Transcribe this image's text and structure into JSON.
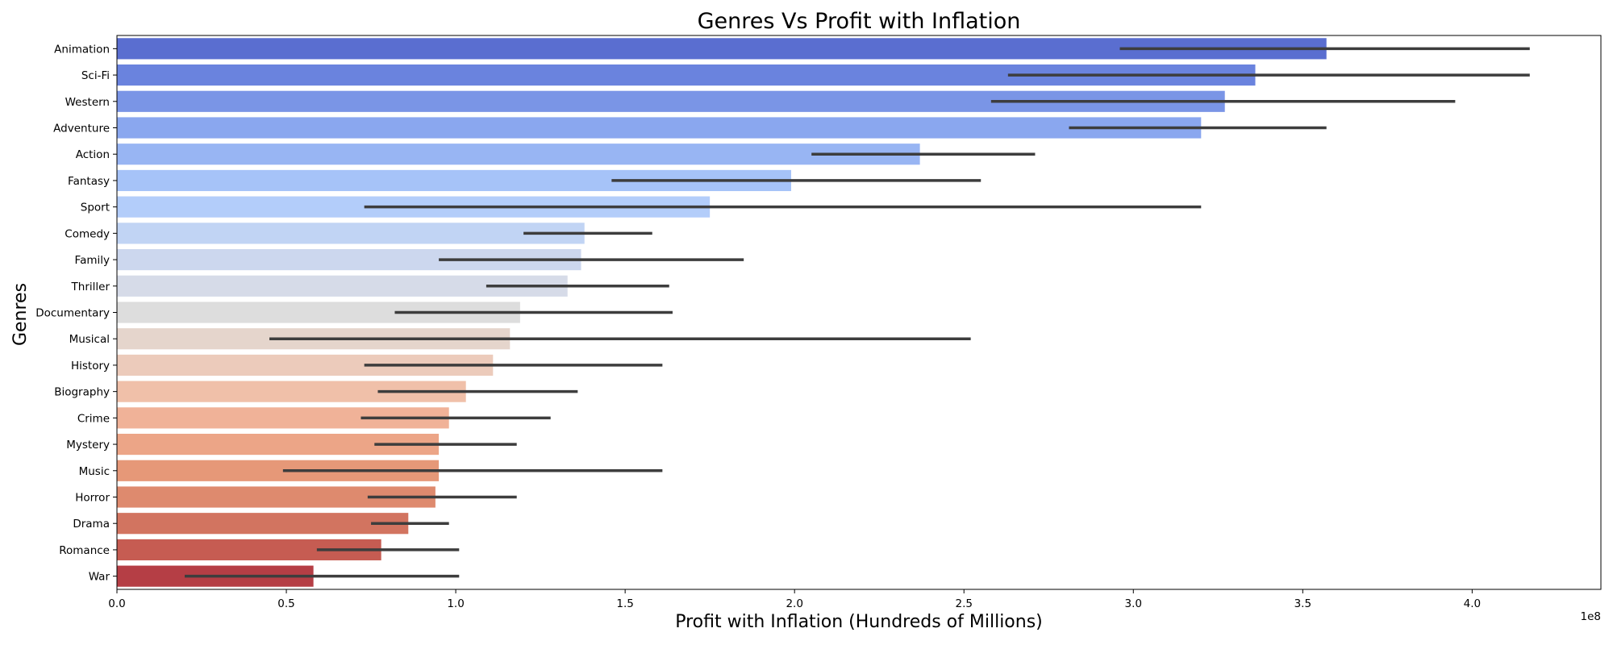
{
  "chart_data": {
    "type": "bar",
    "orientation": "horizontal",
    "title": "Genres Vs Profit with Inflation",
    "xlabel": "Profit with Inflation (Hundreds of Millions)",
    "ylabel": "Genres",
    "x_scale_label": "1e8",
    "xlim": [
      0,
      4.38
    ],
    "xticks": [
      0.0,
      0.5,
      1.0,
      1.5,
      2.0,
      2.5,
      3.0,
      3.5,
      4.0
    ],
    "xtick_labels": [
      "0.0",
      "0.5",
      "1.0",
      "1.5",
      "2.0",
      "2.5",
      "3.0",
      "3.5",
      "4.0"
    ],
    "grid": false,
    "legend": "none",
    "colormap": "coolwarm",
    "categories": [
      "Animation",
      "Sci-Fi",
      "Western",
      "Adventure",
      "Action",
      "Fantasy",
      "Sport",
      "Comedy",
      "Family",
      "Thriller",
      "Documentary",
      "Musical",
      "History",
      "Biography",
      "Crime",
      "Mystery",
      "Music",
      "Horror",
      "Drama",
      "Romance",
      "War"
    ],
    "values": [
      3.57,
      3.36,
      3.27,
      3.2,
      2.37,
      1.99,
      1.75,
      1.38,
      1.37,
      1.33,
      1.19,
      1.16,
      1.11,
      1.03,
      0.98,
      0.95,
      0.95,
      0.94,
      0.86,
      0.78,
      0.58
    ],
    "error_low": [
      2.96,
      2.63,
      2.58,
      2.81,
      2.05,
      1.46,
      0.73,
      1.2,
      0.95,
      1.09,
      0.82,
      0.45,
      0.73,
      0.77,
      0.72,
      0.76,
      0.49,
      0.74,
      0.75,
      0.59,
      0.2
    ],
    "error_high": [
      4.17,
      4.17,
      3.95,
      3.57,
      2.71,
      2.55,
      3.2,
      1.58,
      1.85,
      1.63,
      1.64,
      2.52,
      1.61,
      1.36,
      1.28,
      1.18,
      1.61,
      1.18,
      0.98,
      1.01,
      1.01
    ],
    "colors": [
      "#5a6ed0",
      "#6a83de",
      "#7a95e6",
      "#8aa7ef",
      "#98b5f3",
      "#a6c3f8",
      "#b3cdfa",
      "#c1d4f4",
      "#ccd7ee",
      "#d6dbe8",
      "#dddddd",
      "#e5d5cc",
      "#eccbbb",
      "#f0c0a9",
      "#f0b298",
      "#eca587",
      "#e69878",
      "#de8a6e",
      "#d27460",
      "#c65c52",
      "#b53e45"
    ]
  }
}
